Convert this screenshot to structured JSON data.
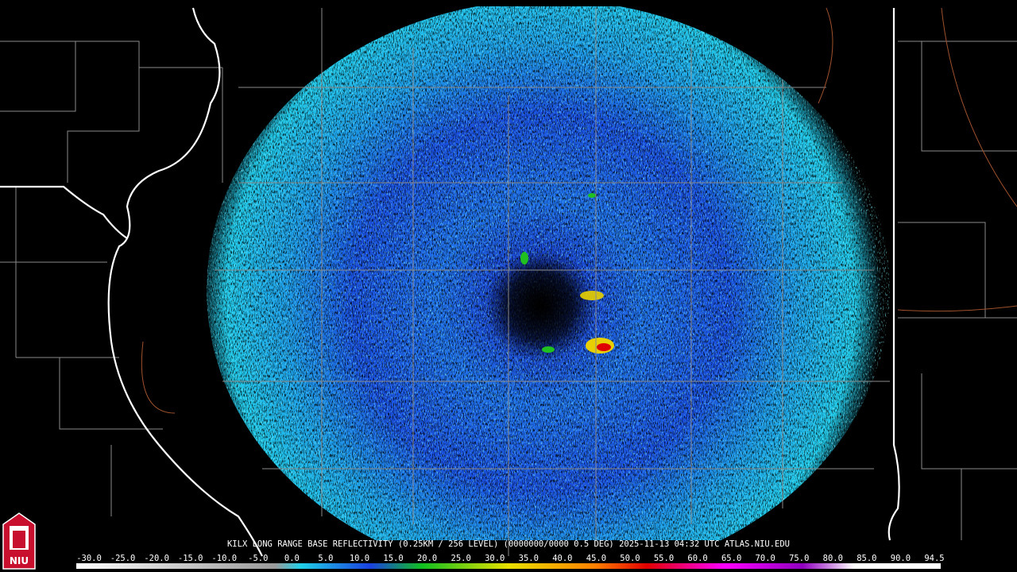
{
  "caption": "KILX LONG RANGE BASE REFLECTIVITY (0.25KM / 256 LEVEL) (0000000/0000 0.5 DEG) 2025-11-13 04:32 UTC  ATLAS.NIU.EDU",
  "logo": {
    "text": "NIU"
  },
  "scale": {
    "labels": [
      "-30.0",
      "-25.0",
      "-20.0",
      "-15.0",
      "-10.0",
      "-5.0",
      "0.0",
      "5.0",
      "10.0",
      "15.0",
      "20.0",
      "25.0",
      "30.0",
      "35.0",
      "40.0",
      "45.0",
      "50.0",
      "55.0",
      "60.0",
      "65.0",
      "70.0",
      "75.0",
      "80.0",
      "85.0",
      "90.0",
      "94.5"
    ]
  }
}
